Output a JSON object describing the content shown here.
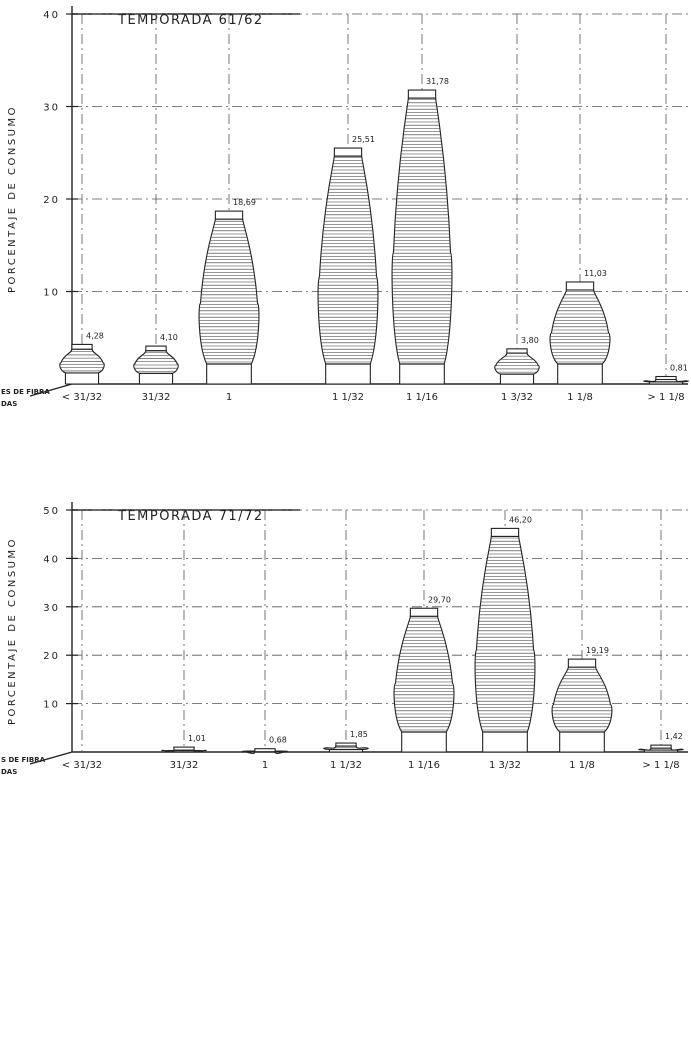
{
  "chart_data": [
    {
      "type": "bar",
      "title": "TEMPORADA   61/62",
      "ylabel": "PORCENTAJE  DE  CONSUMO",
      "xlabel_lines": [
        "ES DE FIBRA",
        "DAS"
      ],
      "categories": [
        "< 31/32",
        "31/32",
        "1",
        "1 1/32",
        "1 1/16",
        "1 3/32",
        "1 1/8",
        "> 1 1/8"
      ],
      "values": [
        4.28,
        4.1,
        18.69,
        25.51,
        31.78,
        3.8,
        11.03,
        0.81
      ],
      "value_labels": [
        "4,28",
        "4,10",
        "18,69",
        "25,51",
        "31,78",
        "3,80",
        "11,03",
        "0,81"
      ],
      "ylim": [
        0,
        40
      ],
      "yticks": [
        "10",
        "20",
        "30",
        "40"
      ],
      "grid": true
    },
    {
      "type": "bar",
      "title": "TEMPORADA   71/72",
      "ylabel": "PORCENTAJE  DE  CONSUMO",
      "xlabel_lines": [
        "S DE FIBRA",
        "DAS"
      ],
      "categories": [
        "< 31/32",
        "31/32",
        "1",
        "1 1/32",
        "1 1/16",
        "1 3/32",
        "1 1/8",
        "> 1 1/8"
      ],
      "values": [
        0,
        1.01,
        0.68,
        1.85,
        29.7,
        46.2,
        19.19,
        1.42
      ],
      "value_labels": [
        "",
        "1,01",
        "0,68",
        "1,85",
        "29,70",
        "46,20",
        "19,19",
        "1,42"
      ],
      "ylim": [
        0,
        50
      ],
      "yticks": [
        "10",
        "20",
        "30",
        "40",
        "50"
      ],
      "grid": true
    }
  ]
}
